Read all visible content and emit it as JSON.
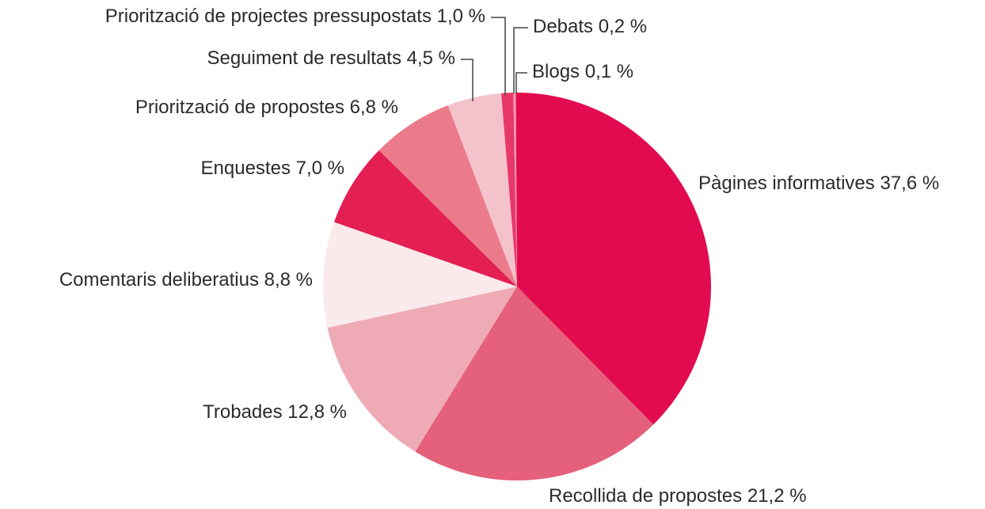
{
  "chart_data": {
    "type": "pie",
    "categories": [
      "Pàgines informatives",
      "Recollida de propostes",
      "Trobades",
      "Comentaris deliberatius",
      "Enquestes",
      "Priorització de propostes",
      "Seguiment de resultats",
      "Priorització de projectes pressupostats",
      "Debats",
      "Blogs"
    ],
    "values": [
      37.6,
      21.2,
      12.8,
      8.8,
      7.0,
      6.8,
      4.5,
      1.0,
      0.2,
      0.1
    ],
    "value_labels": [
      "37,6 %",
      "21,2 %",
      "12,8 %",
      "8,8 %",
      "7,0 %",
      "6,8 %",
      "4,5 %",
      "1,0 %",
      "0,2 %",
      "0,1 %"
    ],
    "colors": [
      "#e30b4f",
      "#e5607a",
      "#eeaab5",
      "#fbeaec",
      "#e41f53",
      "#eb7b8b",
      "#f3c2cb",
      "#e8386a",
      "#f1a0b0",
      "#e30b4f"
    ]
  }
}
